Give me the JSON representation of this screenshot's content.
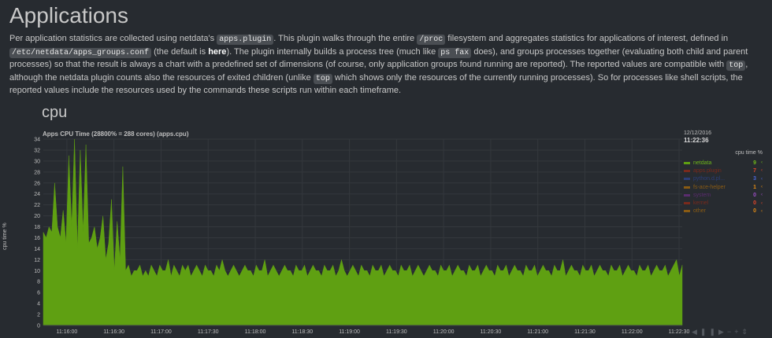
{
  "page": {
    "title": "Applications",
    "intro": {
      "t1": "Per application statistics are collected using netdata's ",
      "c1": "apps.plugin",
      "t2": ". This plugin walks through the entire ",
      "c2": "/proc",
      "t3": " filesystem and aggregates statistics for applications of interest, defined in ",
      "c3": "/etc/netdata/apps_groups.conf",
      "t4": " (the default is ",
      "link": "here",
      "t5": "). The plugin internally builds a process tree (much like ",
      "c4": "ps fax",
      "t6": " does), and groups processes together (evaluating both child and parent processes) so that the result is always a chart with a predefined set of dimensions (of course, only application groups found running are reported). The reported values are compatible with ",
      "c5": "top",
      "t7": ", although the netdata plugin counts also the resources of exited children (unlike ",
      "c6": "top",
      "t8": " which shows only the resources of the currently running processes). So for processes like shell scripts, the reported values include the resources used by the commands these scripts run within each timeframe."
    },
    "section_title": "cpu"
  },
  "chart_data": {
    "type": "area",
    "title": "Apps CPU Time (28800% = 288 cores) (apps.cpu)",
    "ylabel": "cpu time %",
    "ylim": [
      0,
      34
    ],
    "yticks": [
      0,
      2,
      4,
      6,
      8,
      10,
      12,
      14,
      16,
      18,
      20,
      22,
      24,
      26,
      28,
      30,
      32,
      34
    ],
    "xticks": [
      "11:16:00",
      "11:16:30",
      "11:17:00",
      "11:17:30",
      "11:18:00",
      "11:18:30",
      "11:19:00",
      "11:19:30",
      "11:20:00",
      "11:20:30",
      "11:21:00",
      "11:21:30",
      "11:22:00",
      "11:22:30"
    ],
    "x_range_seconds": [
      "11:15:45",
      "11:22:32"
    ],
    "grid": true,
    "legend_placement": "right",
    "series": [
      {
        "name": "netdata",
        "color": "#5fa012",
        "values": [
          17,
          16,
          18,
          17,
          26,
          18,
          16,
          21,
          15,
          31,
          18,
          34,
          14,
          32,
          17,
          33,
          15,
          16,
          18,
          14,
          16,
          20,
          12,
          15,
          23,
          10,
          19,
          12,
          29,
          10,
          11,
          9,
          10,
          10,
          11,
          9,
          10,
          9,
          11,
          10,
          9,
          11,
          10,
          10,
          12,
          9,
          11,
          10,
          9,
          11,
          10,
          11,
          9,
          10,
          11,
          10,
          9,
          11,
          10,
          10,
          9,
          11,
          10,
          12,
          10,
          9,
          10,
          11,
          10,
          9,
          10,
          11,
          10,
          10,
          9,
          11,
          10,
          10,
          12,
          9,
          10,
          11,
          10,
          9,
          10,
          11,
          10,
          10,
          9,
          11,
          10,
          10,
          11,
          9,
          10,
          11,
          10,
          10,
          9,
          11,
          10,
          10,
          11,
          9,
          10,
          12,
          10,
          9,
          10,
          11,
          10,
          9,
          11,
          10,
          10,
          9,
          11,
          10,
          10,
          11,
          9,
          10,
          11,
          10,
          10,
          9,
          11,
          10,
          10,
          11,
          9,
          10,
          11,
          10,
          9,
          10,
          11,
          10,
          10,
          9,
          11,
          10,
          10,
          11,
          9,
          10,
          11,
          10,
          10,
          9,
          11,
          10,
          10,
          11,
          9,
          10,
          11,
          10,
          10,
          9,
          11,
          10,
          10,
          11,
          9,
          10,
          11,
          10,
          10,
          9,
          11,
          10,
          10,
          11,
          9,
          10,
          11,
          10,
          10,
          9,
          11,
          10,
          10,
          12,
          9,
          10,
          11,
          10,
          10,
          9,
          11,
          10,
          10,
          11,
          9,
          10,
          11,
          10,
          10,
          9,
          11,
          10,
          10,
          11,
          9,
          10,
          11,
          10,
          10,
          9,
          11,
          10,
          10,
          11,
          9,
          10,
          11,
          10,
          10,
          11,
          9,
          10,
          11,
          12,
          9,
          11
        ]
      }
    ],
    "legend": {
      "date": "12/12/2016",
      "time": "11:22:36",
      "units": "cpu time %",
      "items": [
        {
          "name": "netdata",
          "value": "9",
          "color": "#5fa012",
          "text_color": "#6db51a",
          "value_color": "#6db51a"
        },
        {
          "name": "apps.plugin",
          "value": "7",
          "color": "#7a2a1c",
          "text_color": "#7a2a1c",
          "value_color": "#e2452a"
        },
        {
          "name": "python.d.pl...",
          "value": "3",
          "color": "#2c3e7a",
          "text_color": "#2c3e7a",
          "value_color": "#4a66d8"
        },
        {
          "name": "fs-ace-helper",
          "value": "1",
          "color": "#8a5b13",
          "text_color": "#8a5b13",
          "value_color": "#e08a14"
        },
        {
          "name": "system",
          "value": "0",
          "color": "#5a2c6e",
          "text_color": "#5a2c6e",
          "value_color": "#9c4ec4"
        },
        {
          "name": "kernel",
          "value": "0",
          "color": "#7a2a1c",
          "text_color": "#7a2a1c",
          "value_color": "#e2452a"
        },
        {
          "name": "other",
          "value": "0",
          "color": "#8a5b13",
          "text_color": "#8a5b13",
          "value_color": "#e08a14"
        }
      ]
    }
  },
  "toolbar": {
    "buttons": [
      "◀",
      "❚❚",
      "▶",
      "−",
      "+",
      "⇕"
    ]
  }
}
